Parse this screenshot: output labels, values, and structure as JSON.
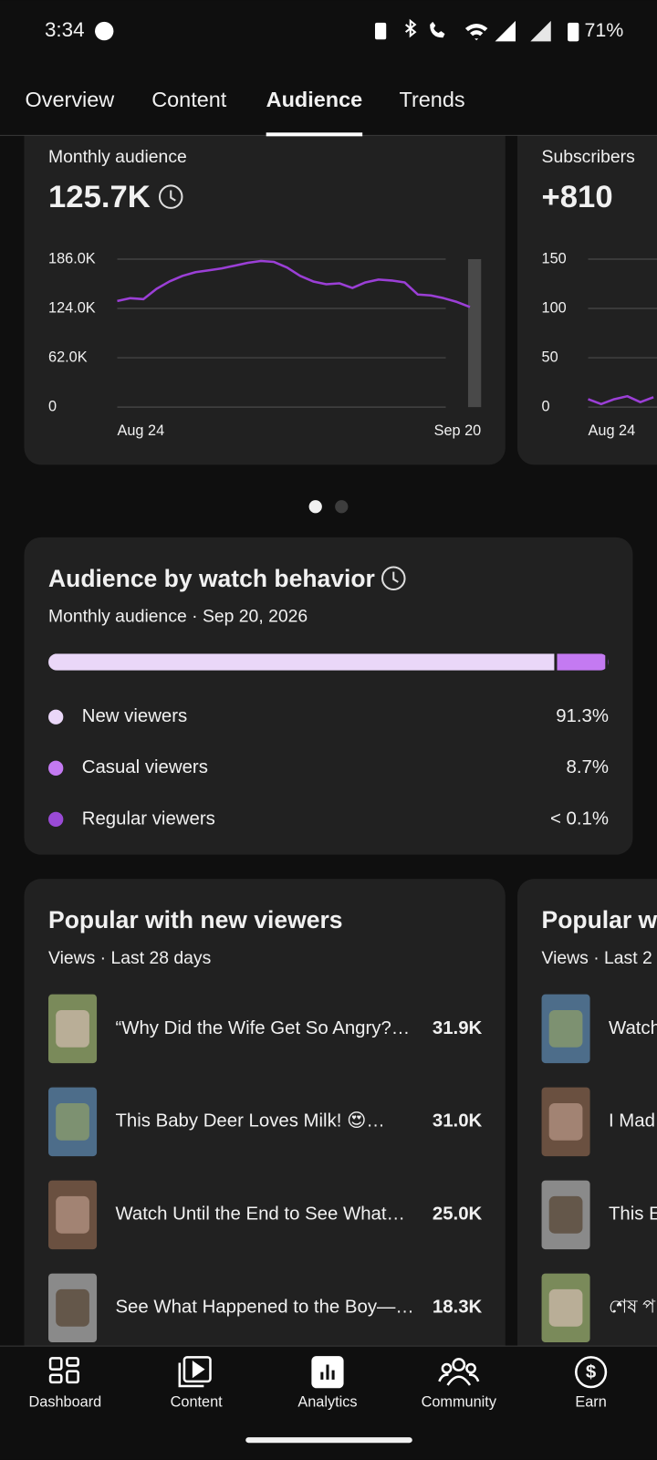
{
  "status_bar": {
    "time": "3:34",
    "battery": "71%"
  },
  "tabs": {
    "items": [
      "Overview",
      "Content",
      "Audience",
      "Trends"
    ],
    "active": 2
  },
  "chart_data": [
    {
      "type": "line",
      "title": "Monthly audience",
      "headline": "125.7K",
      "color": "#9b3fd6",
      "categories": [
        "Aug 24",
        null,
        null,
        null,
        null,
        null,
        null,
        null,
        null,
        null,
        null,
        null,
        null,
        null,
        null,
        null,
        null,
        null,
        null,
        null,
        null,
        null,
        null,
        null,
        null,
        null,
        null,
        "Sep 20"
      ],
      "values": [
        133400,
        136900,
        135700,
        148600,
        157900,
        165000,
        169600,
        172000,
        174300,
        177800,
        181300,
        183700,
        182500,
        175500,
        165000,
        157900,
        154400,
        155600,
        149700,
        156800,
        160300,
        159100,
        156800,
        141500,
        140400,
        136900,
        132200,
        125700
      ],
      "ylim": [
        0,
        186000
      ],
      "yticks": [
        0,
        {
          "value": 62000,
          "label": "62.0K"
        },
        {
          "value": 124000,
          "label": "124.0K"
        },
        {
          "value": 186000,
          "label": "186.0K"
        }
      ],
      "grid": true
    },
    {
      "type": "line",
      "title": "Subscribers",
      "headline": "+810",
      "color": "#9b3fd6",
      "categories": [
        "Aug 24",
        null,
        null,
        null,
        null,
        null
      ],
      "values": [
        8,
        3,
        8,
        11,
        5,
        10
      ],
      "ylim": [
        0,
        150
      ],
      "yticks": [
        0,
        50,
        100,
        150
      ],
      "grid": true
    }
  ],
  "pager": {
    "count": 2,
    "active": 0
  },
  "watch_behavior": {
    "title": "Audience by watch behavior",
    "subtitle": "Monthly audience · Sep 20, 2026",
    "segments": [
      {
        "name": "New viewers",
        "value": 91.3,
        "label": "91.3%",
        "color": "#ead7f8"
      },
      {
        "name": "Casual viewers",
        "value": 8.7,
        "label": "8.7%",
        "color": "#c47af2"
      },
      {
        "name": "Regular viewers",
        "value": 0.1,
        "label": "< 0.1%",
        "color": "#9a4ad6"
      }
    ]
  },
  "popular": [
    {
      "title": "Popular with new viewers",
      "subtitle": "Views · Last 28 days",
      "items": [
        {
          "title": "“Why Did the Wife Get So Angry?…",
          "views": "31.9K"
        },
        {
          "title": "This Baby Deer Loves Milk! 😍…",
          "views": "31.0K"
        },
        {
          "title": "Watch Until the End to See What…",
          "views": "25.0K"
        },
        {
          "title": "See What Happened to the Boy—…",
          "views": "18.3K"
        }
      ]
    },
    {
      "title": "Popular w",
      "subtitle": "Views · Last 2",
      "items": [
        {
          "title": "Watch"
        },
        {
          "title": "I Mad"
        },
        {
          "title": "This E"
        },
        {
          "title": "শেষ প"
        }
      ]
    }
  ],
  "nav": [
    "Dashboard",
    "Content",
    "Analytics",
    "Community",
    "Earn"
  ]
}
